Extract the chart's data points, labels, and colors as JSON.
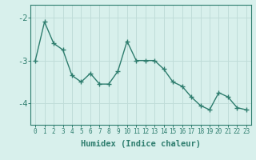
{
  "x": [
    0,
    1,
    2,
    3,
    4,
    5,
    6,
    7,
    8,
    9,
    10,
    11,
    12,
    13,
    14,
    15,
    16,
    17,
    18,
    19,
    20,
    21,
    22,
    23
  ],
  "y": [
    -3.0,
    -2.1,
    -2.6,
    -2.75,
    -3.35,
    -3.5,
    -3.3,
    -3.55,
    -3.55,
    -3.25,
    -2.55,
    -3.0,
    -3.0,
    -3.0,
    -3.2,
    -3.5,
    -3.6,
    -3.85,
    -4.05,
    -4.15,
    -3.75,
    -3.85,
    -4.1,
    -4.15
  ],
  "line_color": "#2e7d6e",
  "marker": "+",
  "bg_color": "#d8f0ec",
  "grid_color": "#c0dcd8",
  "axis_color": "#2e7d6e",
  "xlabel": "Humidex (Indice chaleur)",
  "yticks": [
    -4,
    -3,
    -2
  ],
  "ylim": [
    -4.5,
    -1.7
  ],
  "xlim": [
    -0.5,
    23.5
  ]
}
